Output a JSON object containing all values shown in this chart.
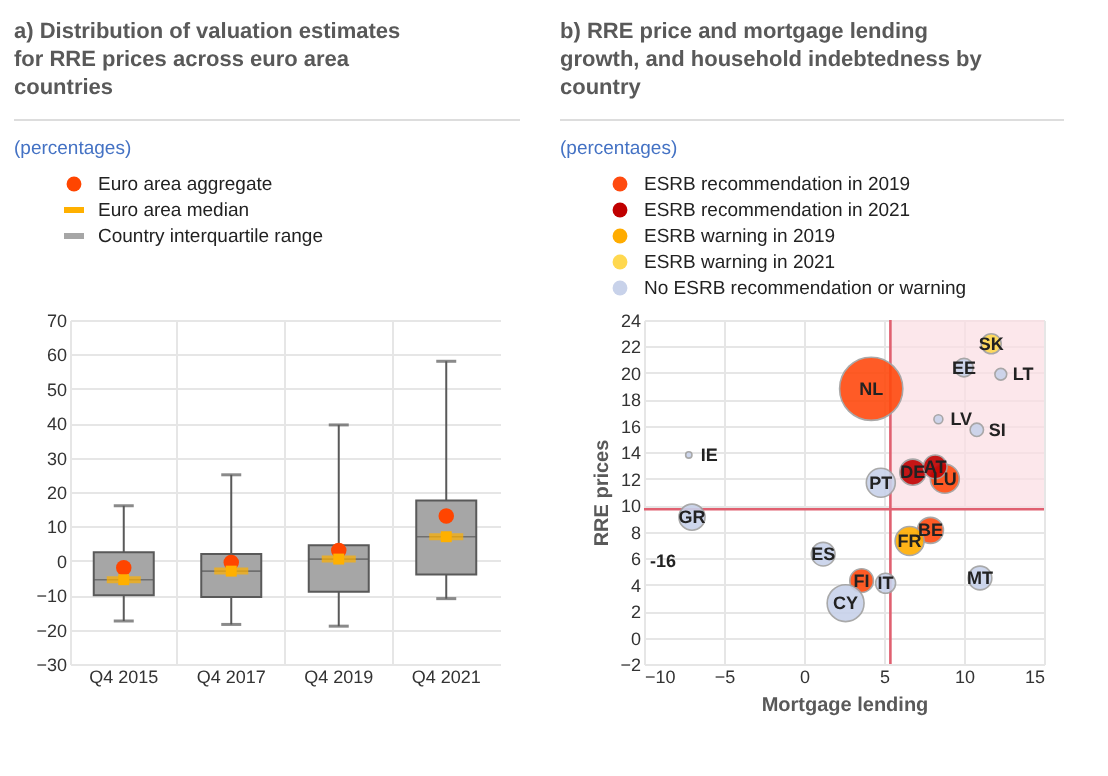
{
  "chart_data": [
    {
      "type": "box",
      "title": "a) Distribution of valuation estimates for RRE prices across euro area countries",
      "subtitle": "(percentages)",
      "categories": [
        "Q4 2015",
        "Q4 2017",
        "Q4 2019",
        "Q4 2021"
      ],
      "ylim": [
        -30,
        70
      ],
      "yticks": [
        -30,
        -20,
        -10,
        0,
        10,
        20,
        30,
        40,
        50,
        60,
        70
      ],
      "grid": true,
      "legend": "top left",
      "series": [
        {
          "name": "Euro area aggregate",
          "type": "scatter",
          "marker": "circle",
          "color": "#ff4500",
          "values": [
            -2,
            -0.5,
            3,
            13
          ]
        },
        {
          "name": "Euro area median",
          "type": "scatter",
          "color": "#ffb000",
          "values": [
            -5.5,
            -3,
            0.5,
            7
          ]
        },
        {
          "name": "Country interquartile range",
          "type": "box",
          "color": "#a6a6a6",
          "boxes": [
            {
              "low": -17.5,
              "q1": -10,
              "median": -5.5,
              "q3": 2.5,
              "high": 16
            },
            {
              "low": -18.5,
              "q1": -10.5,
              "median": -3,
              "q3": 2,
              "high": 25
            },
            {
              "low": -19,
              "q1": -9,
              "median": 0.5,
              "q3": 4.5,
              "high": 39.5
            },
            {
              "low": -11,
              "q1": -4,
              "median": 7,
              "q3": 17.5,
              "high": 58
            }
          ]
        }
      ]
    },
    {
      "type": "bubble",
      "title": "b) RRE price and mortgage lending growth, and household indebtedness by country",
      "subtitle": "(percentages)",
      "xlabel": "Mortgage lending",
      "ylabel": "RRE prices",
      "xlim": [
        -10,
        15
      ],
      "xticks": [
        -10,
        -5,
        0,
        5,
        10,
        15
      ],
      "ylim": [
        -2,
        24
      ],
      "yticks": [
        -2,
        0,
        2,
        4,
        6,
        8,
        10,
        12,
        14,
        16,
        18,
        20,
        22,
        24
      ],
      "grid": true,
      "legend": "top left",
      "ref_lines": [
        {
          "axis": "x",
          "value": 5.4,
          "color": "#e06070"
        },
        {
          "axis": "y",
          "value": 9.7,
          "color": "#e06070"
        }
      ],
      "bands": [
        {
          "axis": "x",
          "from": 5.4,
          "to": 15,
          "color": "#fbdde2"
        }
      ],
      "annotations": [
        "-16"
      ],
      "series": [
        {
          "name": "ESRB recommendation in 2019",
          "color": "#ff4a0f",
          "x": [
            4.2,
            8.8,
            7.9,
            3.6
          ],
          "values": [
            18.8,
            12.0,
            8.1,
            4.3
          ],
          "sizes": [
            1.0,
            0.21,
            0.17,
            0.14
          ],
          "value_labels": [
            "NL",
            "LU",
            "BE",
            "FI"
          ]
        },
        {
          "name": "ESRB recommendation in 2021",
          "color": "#c00000",
          "x": [
            6.8,
            8.2
          ],
          "values": [
            12.5,
            12.9
          ],
          "sizes": [
            0.17,
            0.14
          ],
          "value_labels": [
            "DE",
            "AT"
          ]
        },
        {
          "name": "ESRB warning in 2019",
          "color": "#ffac00",
          "x": [
            6.6
          ],
          "values": [
            7.3
          ],
          "sizes": [
            0.21
          ],
          "value_labels": [
            "FR"
          ]
        },
        {
          "name": "ESRB warning in 2021",
          "color": "#ffd84f",
          "x": [
            11.7
          ],
          "values": [
            22.2
          ],
          "sizes": [
            0.1
          ],
          "value_labels": [
            "SK"
          ]
        },
        {
          "name": "No ESRB recommendation or warning",
          "color": "#c8d2ea",
          "x": [
            10,
            12.3,
            8.4,
            10.8,
            -7.2,
            4.8,
            -7,
            1.2,
            5.1,
            2.6,
            11
          ],
          "values": [
            20.4,
            19.9,
            16.5,
            15.7,
            13.8,
            11.7,
            9.1,
            6.3,
            4.1,
            2.6,
            4.5
          ],
          "sizes": [
            0.085,
            0.035,
            0.02,
            0.045,
            0.01,
            0.21,
            0.17,
            0.14,
            0.1,
            0.34,
            0.14
          ],
          "value_labels": [
            "EE",
            "LT",
            "LV",
            "SI",
            "IE",
            "PT",
            "GR",
            "ES",
            "IT",
            "CY",
            "MT"
          ]
        }
      ]
    }
  ]
}
